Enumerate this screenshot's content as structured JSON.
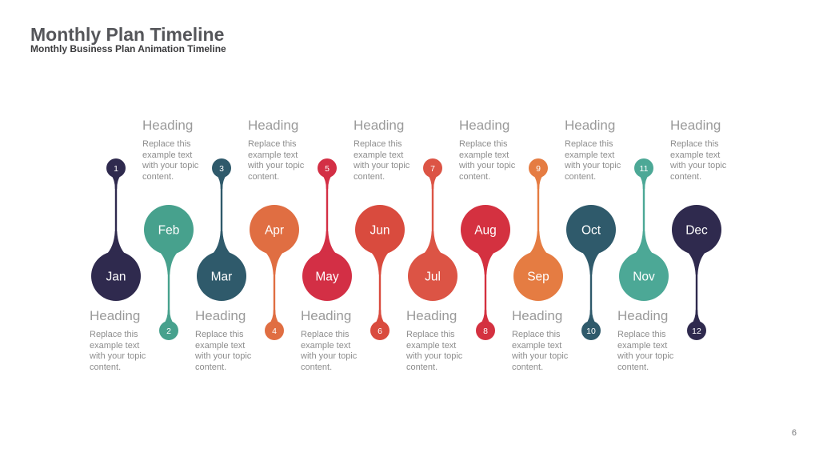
{
  "slide": {
    "title": "Monthly Plan Timeline",
    "subtitle": "Monthly Business Plan Animation Timeline",
    "page_number": "6"
  },
  "placeholder": {
    "heading": "Heading",
    "body_lines": [
      "Replace this",
      "example text",
      "with your topic",
      "content."
    ]
  },
  "months": [
    {
      "num": "1",
      "label": "Jan",
      "color": "#2F2A4E",
      "bubble": "bottom"
    },
    {
      "num": "2",
      "label": "Feb",
      "color": "#47A18D",
      "bubble": "top"
    },
    {
      "num": "3",
      "label": "Mar",
      "color": "#2F5A6B",
      "bubble": "bottom"
    },
    {
      "num": "4",
      "label": "Apr",
      "color": "#E06E42",
      "bubble": "top"
    },
    {
      "num": "5",
      "label": "May",
      "color": "#D32F45",
      "bubble": "bottom"
    },
    {
      "num": "6",
      "label": "Jun",
      "color": "#D94B3E",
      "bubble": "top"
    },
    {
      "num": "7",
      "label": "Jul",
      "color": "#DC5445",
      "bubble": "bottom"
    },
    {
      "num": "8",
      "label": "Aug",
      "color": "#D43140",
      "bubble": "top"
    },
    {
      "num": "9",
      "label": "Sep",
      "color": "#E57C42",
      "bubble": "bottom"
    },
    {
      "num": "10",
      "label": "Oct",
      "color": "#2F5A6B",
      "bubble": "top"
    },
    {
      "num": "11",
      "label": "Nov",
      "color": "#4CA896",
      "bubble": "bottom"
    },
    {
      "num": "12",
      "label": "Dec",
      "color": "#2F2A4E",
      "bubble": "top"
    }
  ]
}
